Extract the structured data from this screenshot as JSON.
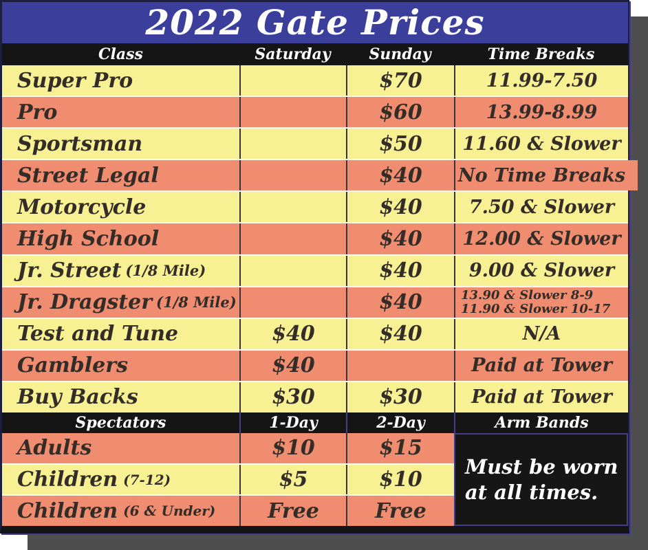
{
  "title": "2022 Gate Prices",
  "colors": {
    "title_band_blue": "#3b3e9b",
    "row_yellow": "#f8f194",
    "row_salmon": "#f08d70",
    "header_black": "#151515",
    "shadow_gray": "#4e4e4e",
    "accent_navy": "#443d8c",
    "text_dark": "#332c27",
    "header_text": "#ffffff"
  },
  "class_table": {
    "headers": [
      "Class",
      "Saturday",
      "Sunday",
      "Time Breaks"
    ],
    "rows": [
      {
        "class": "Super Pro",
        "class_note": "",
        "saturday": "",
        "sunday": "$70",
        "time_breaks": "11.99-7.50"
      },
      {
        "class": "Pro",
        "class_note": "",
        "saturday": "",
        "sunday": "$60",
        "time_breaks": "13.99-8.99"
      },
      {
        "class": "Sportsman",
        "class_note": "",
        "saturday": "",
        "sunday": "$50",
        "time_breaks": "11.60 & Slower"
      },
      {
        "class": "Street Legal",
        "class_note": "",
        "saturday": "",
        "sunday": "$40",
        "time_breaks": "No Time Breaks"
      },
      {
        "class": "Motorcycle",
        "class_note": "",
        "saturday": "",
        "sunday": "$40",
        "time_breaks": "7.50 & Slower"
      },
      {
        "class": "High School",
        "class_note": "",
        "saturday": "",
        "sunday": "$40",
        "time_breaks": "12.00 & Slower"
      },
      {
        "class": "Jr. Street",
        "class_note": "(1/8 Mile)",
        "saturday": "",
        "sunday": "$40",
        "time_breaks": "9.00 & Slower"
      },
      {
        "class": "Jr. Dragster",
        "class_note": "(1/8 Mile)",
        "saturday": "",
        "sunday": "$40",
        "time_breaks": "13.90 & Slower 8-9",
        "time_breaks_line2": "11.90 & Slower 10-17"
      },
      {
        "class": "Test and Tune",
        "class_note": "",
        "saturday": "$40",
        "sunday": "$40",
        "time_breaks": "N/A"
      },
      {
        "class": "Gamblers",
        "class_note": "",
        "saturday": "$40",
        "sunday": "",
        "time_breaks": "Paid at Tower"
      },
      {
        "class": "Buy Backs",
        "class_note": "",
        "saturday": "$30",
        "sunday": "$30",
        "time_breaks": "Paid at Tower"
      }
    ]
  },
  "spectator_table": {
    "headers": [
      "Spectators",
      "1-Day",
      "2-Day",
      "Arm Bands"
    ],
    "rows": [
      {
        "label": "Adults",
        "note": "",
        "one_day": "$10",
        "two_day": "$15"
      },
      {
        "label": "Children",
        "note": "(7-12)",
        "one_day": "$5",
        "two_day": "$10"
      },
      {
        "label": "Children",
        "note": "(6 & Under)",
        "one_day": "Free",
        "two_day": "Free"
      }
    ],
    "arm_bands_note_line1": "Must be worn",
    "arm_bands_note_line2": "at all times."
  }
}
